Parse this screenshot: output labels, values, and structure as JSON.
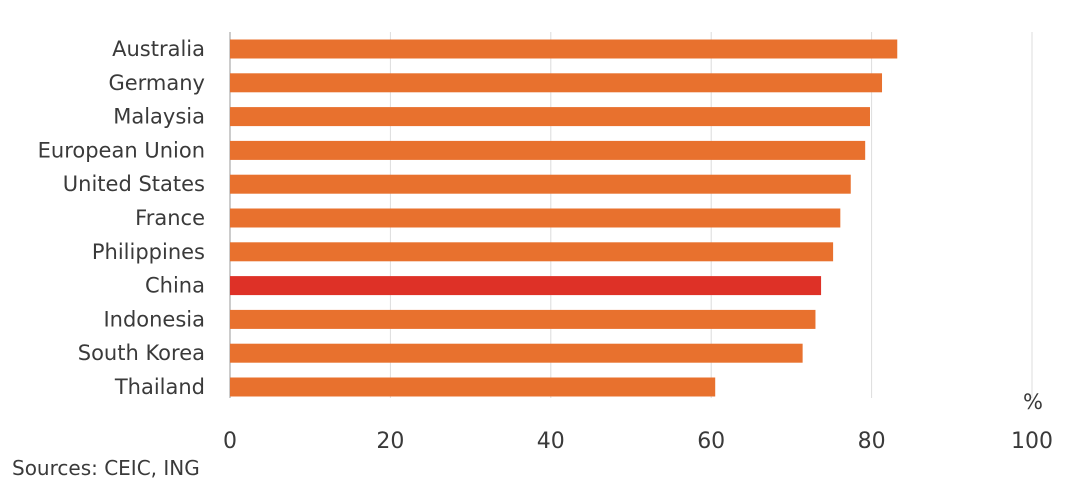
{
  "chart_data": {
    "type": "bar",
    "orientation": "horizontal",
    "categories": [
      "Australia",
      "Germany",
      "Malaysia",
      "European Union",
      "United States",
      "France",
      "Philippines",
      "China",
      "Indonesia",
      "South Korea",
      "Thailand"
    ],
    "values": [
      83.2,
      81.3,
      79.8,
      79.2,
      77.4,
      76.1,
      75.2,
      73.7,
      73.0,
      71.4,
      60.5
    ],
    "highlight": "China",
    "colors": {
      "bar": "#E8712E",
      "highlight": "#DE3127"
    },
    "xlim": [
      0,
      100
    ],
    "xticks": [
      0,
      20,
      40,
      60,
      80,
      100
    ],
    "xlabel": "%",
    "grid": true
  },
  "source": "Sources: CEIC, ING"
}
